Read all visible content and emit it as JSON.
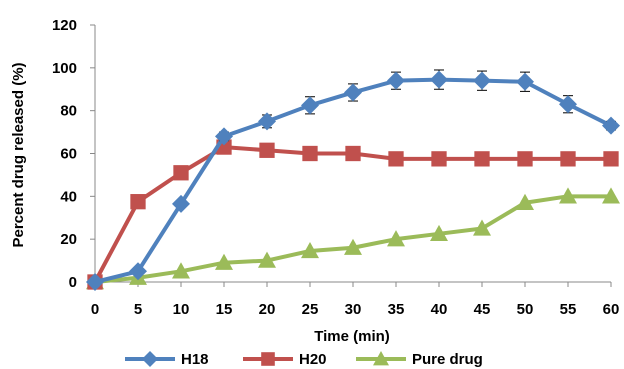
{
  "chart_data": {
    "type": "line",
    "title": "",
    "xlabel": "Time (min)",
    "ylabel": "Percent drug released (%)",
    "x": [
      0,
      5,
      10,
      15,
      20,
      25,
      30,
      35,
      40,
      45,
      50,
      55,
      60
    ],
    "xlim": [
      0,
      60
    ],
    "ylim": [
      0,
      120
    ],
    "x_ticks": [
      "0",
      "5",
      "10",
      "15",
      "20",
      "25",
      "30",
      "35",
      "40",
      "45",
      "50",
      "55",
      "60"
    ],
    "y_ticks": [
      "0",
      "20",
      "40",
      "60",
      "80",
      "100",
      "120"
    ],
    "grid": false,
    "legend_position": "bottom",
    "series": [
      {
        "name": "H18",
        "color": "#4f81bd",
        "marker": "diamond",
        "values": [
          0,
          5,
          36.5,
          68,
          75,
          82.5,
          88.5,
          94,
          94.5,
          94,
          93.5,
          83,
          73
        ],
        "error": [
          0,
          0,
          0,
          2,
          3,
          4,
          4,
          4,
          4.5,
          4.5,
          4.5,
          4,
          2
        ]
      },
      {
        "name": "H20",
        "color": "#c0504d",
        "marker": "square",
        "values": [
          0,
          37.5,
          51,
          63,
          61.5,
          60,
          60,
          57.5,
          57.5,
          57.5,
          57.5,
          57.5,
          57.5
        ],
        "error": []
      },
      {
        "name": "Pure drug",
        "color": "#9bbb59",
        "marker": "triangle",
        "values": [
          0,
          2,
          5,
          9,
          10,
          14.5,
          16,
          20,
          22.5,
          25,
          37,
          40,
          40
        ],
        "error": []
      }
    ]
  }
}
